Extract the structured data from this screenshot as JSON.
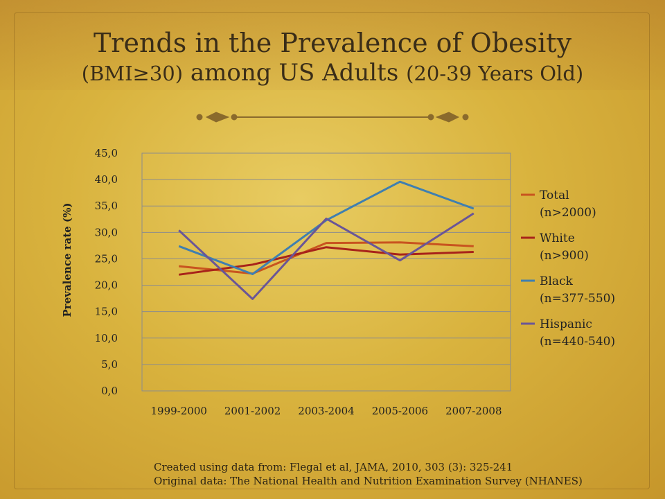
{
  "slide": {
    "title_line1": "Trends in the Prevalence of Obesity",
    "title_line2_a": "(BMI≥30)",
    "title_line2_b": " among US Adults ",
    "title_line2_c": "(20-39 Years Old)",
    "source_line1": "Created using data from: Flegal et al, JAMA, 2010, 303 (3): 325-241",
    "source_line2": "Original data: The National Health and Nutrition Examination Survey (NHANES)"
  },
  "colors": {
    "total": "#c8541f",
    "white": "#a8231a",
    "black": "#3f7fb0",
    "hispanic": "#6a5597",
    "divider": "#8a6a2c"
  },
  "chart_data": {
    "type": "line",
    "title": "",
    "xlabel": "",
    "ylabel": "Prevalence rate (%)",
    "ylim": [
      0,
      45
    ],
    "grid": true,
    "legend_position": "right",
    "categories": [
      "1999-2000",
      "2001-2002",
      "2003-2004",
      "2005-2006",
      "2007-2008"
    ],
    "yticks": [
      "0,0",
      "5,0",
      "10,0",
      "15,0",
      "20,0",
      "25,0",
      "30,0",
      "35,0",
      "40,0",
      "45,0"
    ],
    "series": [
      {
        "name": "Total",
        "sub": "(n>2000)",
        "color": "#c8541f",
        "values": [
          23.6,
          22.2,
          28.0,
          28.1,
          27.4
        ]
      },
      {
        "name": "White",
        "sub": "(n>900)",
        "color": "#a8231a",
        "values": [
          22.0,
          23.9,
          27.2,
          25.8,
          26.3
        ]
      },
      {
        "name": "Black",
        "sub": "(n=377-550)",
        "color": "#3f7fb0",
        "values": [
          27.4,
          22.1,
          32.3,
          39.6,
          34.5
        ]
      },
      {
        "name": "Hispanic",
        "sub": "(n=440-540)",
        "color": "#6a5597",
        "values": [
          30.4,
          17.4,
          32.6,
          24.7,
          33.6
        ]
      }
    ]
  }
}
